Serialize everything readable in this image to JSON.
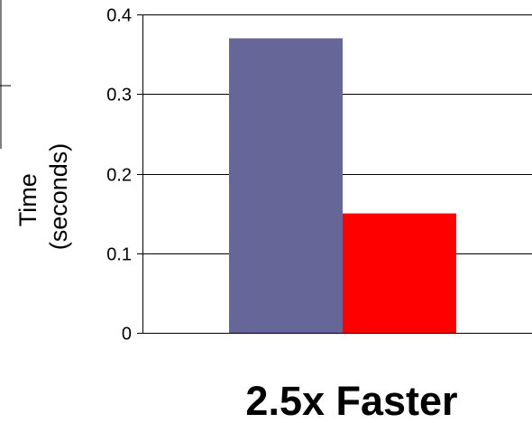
{
  "chart_data": {
    "type": "bar",
    "categories": [
      "",
      ""
    ],
    "series": [
      {
        "values": [
          0.37,
          null
        ],
        "color": "#666699"
      },
      {
        "values": [
          null,
          0.15
        ],
        "color": "#ff0000"
      }
    ],
    "values": [
      0.37,
      0.15
    ],
    "bar_colors": [
      "#666699",
      "#ff0000"
    ],
    "ylabel_lines": [
      "Time",
      "(seconds)"
    ],
    "ylim": [
      0,
      0.4
    ],
    "yticks": [
      0,
      0.1,
      0.2,
      0.3,
      0.4
    ],
    "ytick_labels": [
      "0",
      "0.1",
      "0.2",
      "0.3",
      "0.4"
    ],
    "grid": true,
    "legend": "none",
    "annotation": "2.5x Faster"
  }
}
